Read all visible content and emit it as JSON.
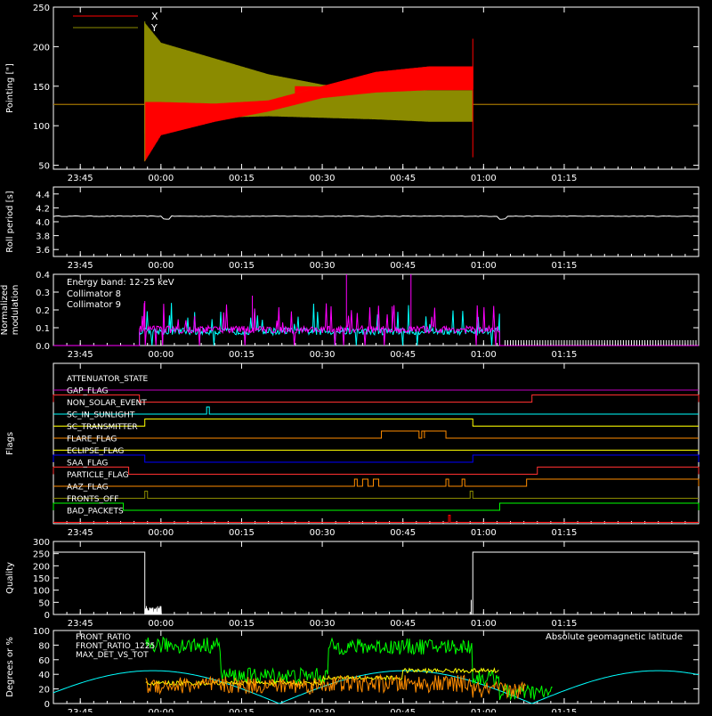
{
  "colors": {
    "background": "#000000",
    "axes": "#ffffff",
    "x_red": "#ff0000",
    "y_olive": "#8b8b00",
    "cyan": "#00ffff",
    "magenta": "#ff00ff",
    "green": "#00ff00",
    "yellow": "#ffff00",
    "orange": "#ff8c00",
    "blue": "#0000ff"
  },
  "time_axis": {
    "start_minutes": -20,
    "end_minutes": 100,
    "tick_labels": [
      "23:45",
      "00:00",
      "00:15",
      "00:30",
      "00:45",
      "01:00",
      "01:15"
    ],
    "tick_minutes": [
      -15,
      0,
      15,
      30,
      45,
      60,
      75
    ]
  },
  "chart_data": [
    {
      "id": "pointing",
      "type": "line",
      "ylabel": "Pointing [\"]",
      "ylim": [
        45,
        250
      ],
      "yticks": [
        50,
        100,
        150,
        200,
        250
      ],
      "legend": [
        "X",
        "Y"
      ],
      "series": [
        {
          "name": "X",
          "color_key": "x_red",
          "baseline": 127,
          "active_range_min": [
            -3,
            58
          ],
          "envelope_min": [
            [
              -3,
              55
            ],
            [
              0,
              88
            ],
            [
              10,
              105
            ],
            [
              20,
              118
            ],
            [
              30,
              135
            ],
            [
              40,
              142
            ],
            [
              50,
              145
            ],
            [
              58,
              145
            ]
          ],
          "envelope_max": [
            [
              -3,
              130
            ],
            [
              0,
              130
            ],
            [
              10,
              128
            ],
            [
              20,
              132
            ],
            [
              30,
              150
            ],
            [
              40,
              168
            ],
            [
              50,
              175
            ],
            [
              58,
              175
            ]
          ]
        },
        {
          "name": "Y",
          "color_key": "y_olive",
          "baseline": 127,
          "active_range_min": [
            -3,
            58
          ],
          "envelope_min": [
            [
              -3,
              90
            ],
            [
              0,
              118
            ],
            [
              10,
              110
            ],
            [
              20,
              112
            ],
            [
              30,
              110
            ],
            [
              40,
              108
            ],
            [
              50,
              105
            ],
            [
              58,
              105
            ]
          ],
          "envelope_max": [
            [
              -3,
              230
            ],
            [
              0,
              205
            ],
            [
              10,
              185
            ],
            [
              20,
              165
            ],
            [
              30,
              152
            ],
            [
              40,
              145
            ],
            [
              50,
              145
            ],
            [
              58,
              145
            ]
          ]
        }
      ]
    },
    {
      "id": "roll",
      "type": "line",
      "ylabel": "Roll period [s]",
      "ylim": [
        3.5,
        4.5
      ],
      "yticks": [
        3.6,
        3.8,
        4.0,
        4.2,
        4.4
      ],
      "series": [
        {
          "name": "",
          "color_key": "axes",
          "value": 4.08
        }
      ]
    },
    {
      "id": "modulation",
      "type": "line",
      "ylabel": "Normalized modulation",
      "ylim": [
        0,
        0.4
      ],
      "yticks": [
        0.0,
        0.1,
        0.2,
        0.3,
        0.4
      ],
      "annotation": "Energy band: 12-25 keV",
      "active_range_min": [
        -4,
        63
      ],
      "series": [
        {
          "name": "Collimator 8",
          "color_key": "cyan",
          "typical": 0.08
        },
        {
          "name": "Collimator 9",
          "color_key": "magenta",
          "typical": 0.09
        }
      ]
    },
    {
      "id": "flags",
      "type": "step",
      "ylabel": "Flags",
      "series": [
        {
          "name": "ATTENUATOR_STATE",
          "color": "#c000c0",
          "on": []
        },
        {
          "name": "GAP_FLAG",
          "color": "#ff3030",
          "on": [
            [
              -20,
              -4
            ],
            [
              69,
              100
            ]
          ]
        },
        {
          "name": "NON_SOLAR_EVENT",
          "color": "#00ffff",
          "on": [
            [
              8.5,
              9
            ]
          ]
        },
        {
          "name": "SC_IN_SUNLIGHT",
          "color": "#ffff00",
          "on": [
            [
              -3,
              58
            ]
          ]
        },
        {
          "name": "SC_TRANSMITTER",
          "color": "#ff8c00",
          "on": [
            [
              41,
              48
            ],
            [
              48.5,
              49
            ],
            [
              49,
              53
            ]
          ]
        },
        {
          "name": "FLARE_FLAG",
          "color": "#ffff00",
          "on": []
        },
        {
          "name": "ECLIPSE_FLAG",
          "color": "#0000ff",
          "on": [
            [
              -20,
              -3
            ],
            [
              58,
              100
            ]
          ]
        },
        {
          "name": "SAA_FLAG",
          "color": "#ff3030",
          "on": [
            [
              -20,
              -6
            ],
            [
              70,
              100
            ]
          ]
        },
        {
          "name": "PARTICLE_FLAG",
          "color": "#ff8c00",
          "on": [
            [
              36,
              36.5
            ],
            [
              37.5,
              38.5
            ],
            [
              39.5,
              40.5
            ],
            [
              53,
              53.5
            ],
            [
              56,
              56.5
            ],
            [
              68,
              100
            ]
          ]
        },
        {
          "name": "AAZ_FLAG",
          "color": "#8b8b00",
          "on": [
            [
              -3,
              -2.5
            ],
            [
              57.5,
              58
            ]
          ]
        },
        {
          "name": "FRONTS_OFF",
          "color": "#00ff00",
          "on": [
            [
              -20,
              -7
            ],
            [
              63,
              100
            ]
          ]
        },
        {
          "name": "BAD_PACKETS",
          "color": "#ff0000",
          "on": [
            [
              53.5,
              53.8
            ]
          ]
        }
      ]
    },
    {
      "id": "quality",
      "type": "line",
      "ylabel": "Quality",
      "ylim": [
        0,
        300
      ],
      "yticks": [
        0,
        50,
        100,
        150,
        200,
        250,
        300
      ],
      "series": [
        {
          "name": "",
          "color_key": "axes",
          "high": 256,
          "high_ranges": [
            [
              -20,
              -3
            ],
            [
              58,
              100
            ]
          ]
        }
      ]
    },
    {
      "id": "front",
      "type": "line",
      "ylabel": "Degrees or %",
      "ylim": [
        0,
        100
      ],
      "yticks": [
        0,
        20,
        40,
        60,
        80,
        100
      ],
      "legend": [
        "FRONT_RATIO",
        "FRONT_RATIO_1225",
        "MAX_DET_VS_TOT"
      ],
      "annotation": "Absolute geomagnetic latitude",
      "series": [
        {
          "name": "FRONT_RATIO",
          "color_key": "yellow"
        },
        {
          "name": "FRONT_RATIO_1225",
          "color_key": "green"
        },
        {
          "name": "MAX_DET_VS_TOT",
          "color_key": "orange"
        },
        {
          "name": "Absolute geomagnetic latitude",
          "color_key": "cyan"
        }
      ]
    }
  ]
}
